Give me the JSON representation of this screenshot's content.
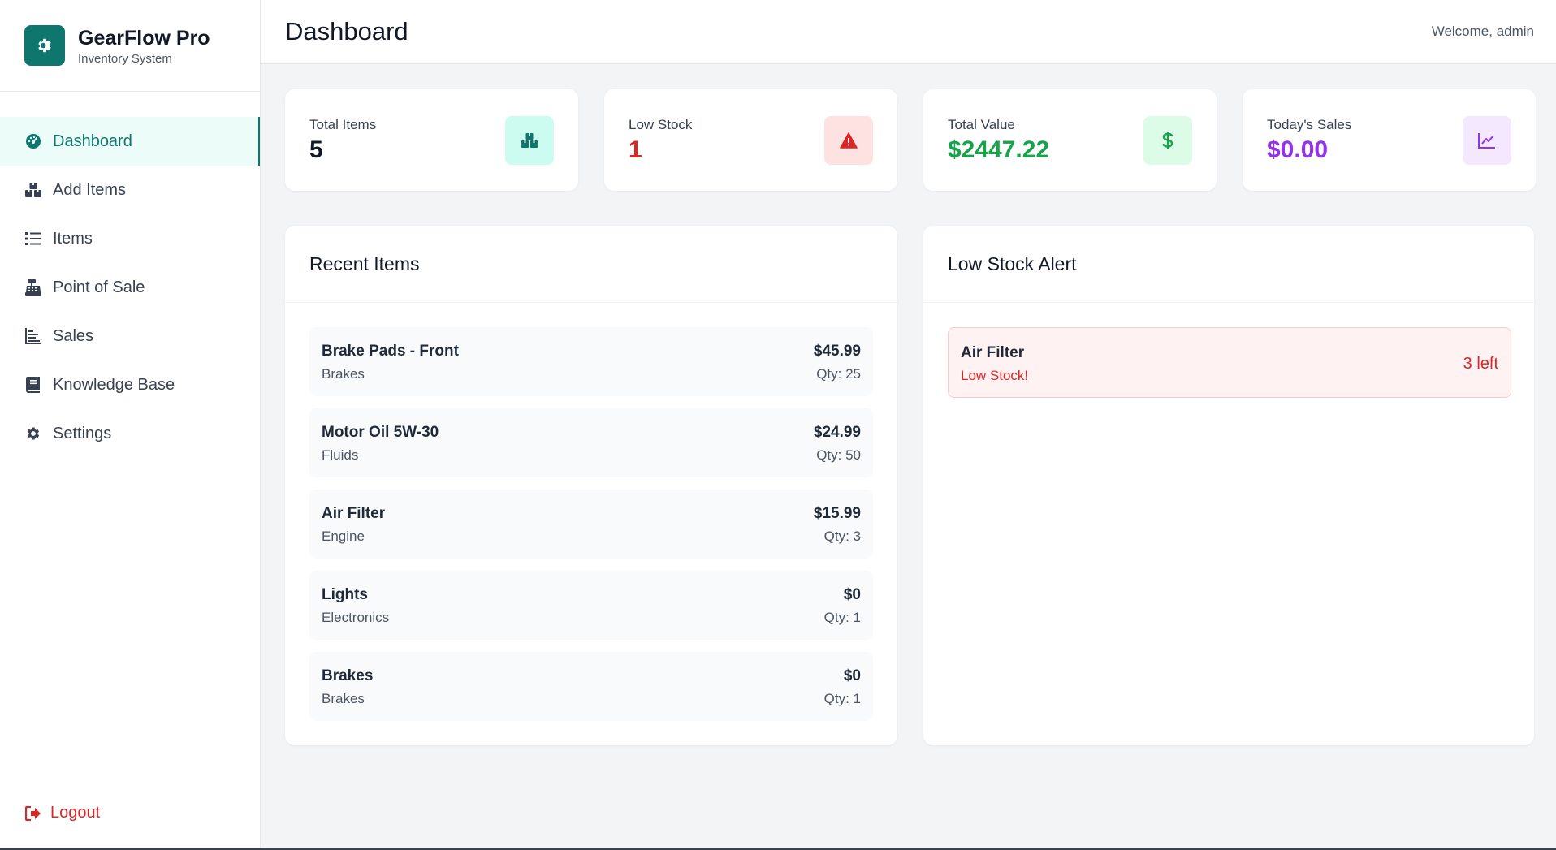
{
  "brand": {
    "title": "GearFlow Pro",
    "subtitle": "Inventory System",
    "icon": "gear-icon"
  },
  "nav": {
    "items": [
      {
        "label": "Dashboard",
        "icon": "dashboard-gauge-icon",
        "active": true
      },
      {
        "label": "Add Items",
        "icon": "boxes-icon"
      },
      {
        "label": "Items",
        "icon": "list-icon"
      },
      {
        "label": "Point of Sale",
        "icon": "cash-register-icon"
      },
      {
        "label": "Sales",
        "icon": "bar-chart-icon"
      },
      {
        "label": "Knowledge Base",
        "icon": "book-icon"
      },
      {
        "label": "Settings",
        "icon": "gear-icon"
      }
    ],
    "logout": "Logout"
  },
  "header": {
    "title": "Dashboard",
    "welcome": "Welcome, admin"
  },
  "stats": [
    {
      "label": "Total Items",
      "value": "5",
      "color": "#111827",
      "icon": "boxes-icon",
      "icon_bg": "#ccfbef",
      "icon_color": "#0f766e"
    },
    {
      "label": "Low Stock",
      "value": "1",
      "color": "#dc2626",
      "icon": "warning-icon",
      "icon_bg": "#fee2e2",
      "icon_color": "#dc2626"
    },
    {
      "label": "Total Value",
      "value": "$2447.22",
      "color": "#16a34a",
      "icon": "dollar-icon",
      "icon_bg": "#dcfce7",
      "icon_color": "#16a34a"
    },
    {
      "label": "Today's Sales",
      "value": "$0.00",
      "color": "#9333ea",
      "icon": "line-chart-icon",
      "icon_bg": "#f3e8ff",
      "icon_color": "#9333ea"
    }
  ],
  "recent": {
    "title": "Recent Items",
    "items": [
      {
        "name": "Brake Pads - Front",
        "category": "Brakes",
        "price": "$45.99",
        "qty": "Qty: 25"
      },
      {
        "name": "Motor Oil 5W-30",
        "category": "Fluids",
        "price": "$24.99",
        "qty": "Qty: 50"
      },
      {
        "name": "Air Filter",
        "category": "Engine",
        "price": "$15.99",
        "qty": "Qty: 3"
      },
      {
        "name": "Lights",
        "category": "Electronics",
        "price": "$0",
        "qty": "Qty: 1"
      },
      {
        "name": "Brakes",
        "category": "Brakes",
        "price": "$0",
        "qty": "Qty: 1"
      }
    ]
  },
  "low_stock": {
    "title": "Low Stock Alert",
    "items": [
      {
        "name": "Air Filter",
        "status": "Low Stock!",
        "remaining": "3 left"
      }
    ]
  }
}
